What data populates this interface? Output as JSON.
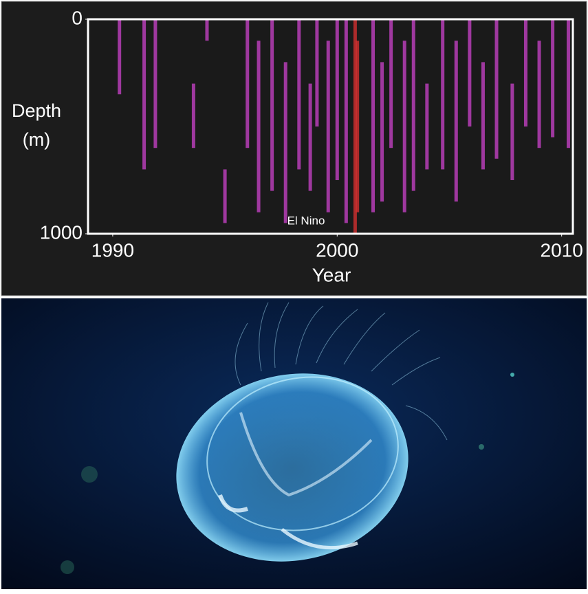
{
  "chart_data": {
    "type": "strip",
    "xlabel": "Year",
    "ylabel": "Depth (m)",
    "annotation": "El Nino",
    "xlim": [
      1988.9,
      2010.5
    ],
    "xticks": [
      1990,
      2000,
      2010
    ],
    "ylim": [
      0,
      1000
    ],
    "yticks": [
      0,
      1000
    ],
    "y_inverted": true,
    "series": [
      {
        "color": "#c040c0",
        "x": [
          1990.3,
          1991.4,
          1991.9,
          1993.6,
          1994.2,
          1995.0,
          1996.0,
          1996.5,
          1997.1,
          1997.7,
          1998.3,
          1998.8,
          1999.1,
          1999.6,
          2000.0,
          2000.4,
          2001.6,
          2002.0,
          2002.4,
          2003.0,
          2003.4,
          2004.0,
          2004.7,
          2005.3,
          2005.9,
          2006.5,
          2007.1,
          2007.8,
          2008.4,
          2009.0,
          2009.6,
          2010.3
        ],
        "y_start": [
          0,
          0,
          0,
          300,
          0,
          700,
          0,
          100,
          0,
          200,
          0,
          300,
          0,
          100,
          0,
          0,
          0,
          200,
          0,
          100,
          0,
          300,
          0,
          100,
          0,
          200,
          0,
          300,
          0,
          100,
          0,
          0
        ],
        "y_end": [
          350,
          700,
          600,
          600,
          100,
          950,
          600,
          900,
          800,
          950,
          700,
          800,
          500,
          900,
          750,
          950,
          900,
          850,
          600,
          900,
          800,
          700,
          700,
          850,
          500,
          700,
          650,
          750,
          500,
          600,
          550,
          600
        ]
      },
      {
        "color": "#d23030",
        "x": [
          2000.8,
          2000.9
        ],
        "y_start": [
          0,
          100
        ],
        "y_end": [
          1000,
          900
        ]
      }
    ]
  }
}
